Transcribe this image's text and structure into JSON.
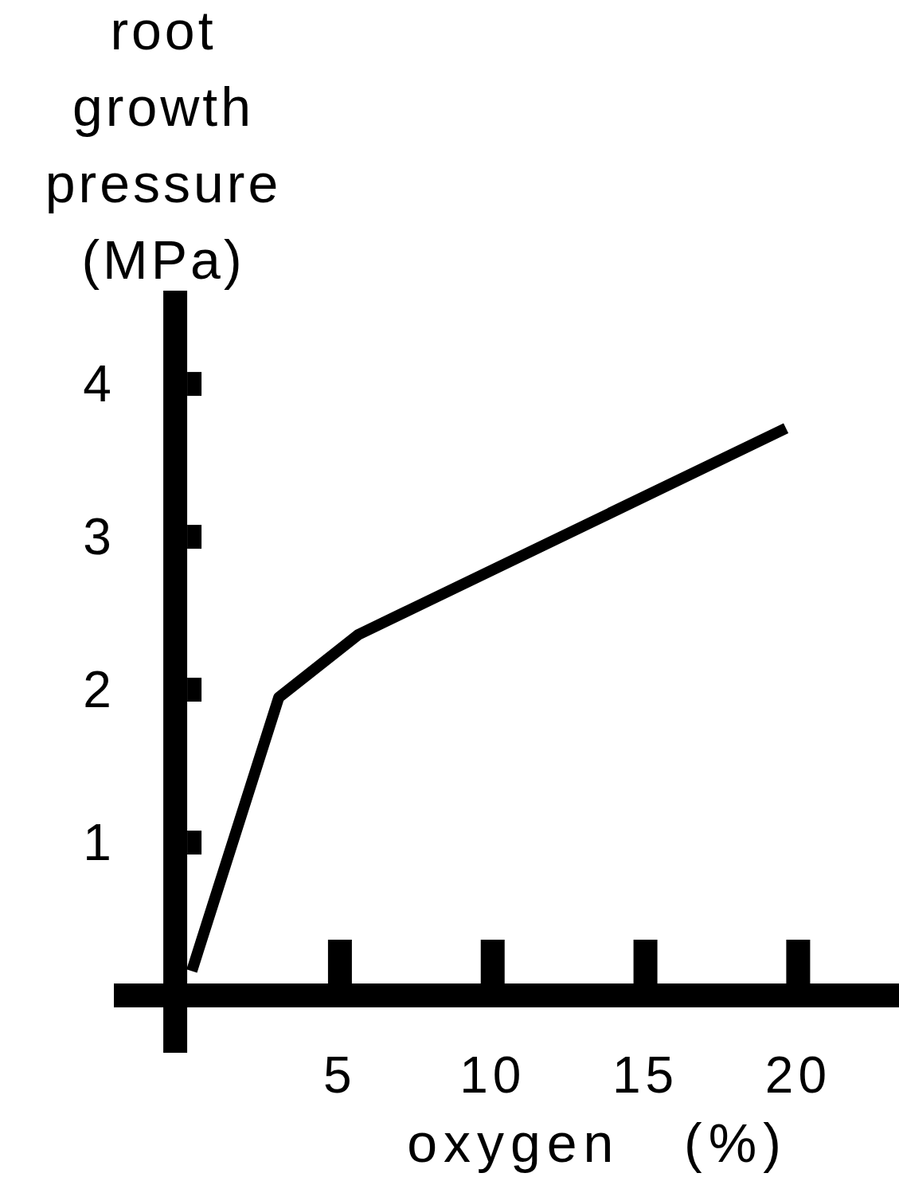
{
  "chart_data": {
    "type": "line",
    "xlabel": "oxygen   (%)",
    "ylabel": "root growth pressure (MPa)",
    "series": [
      {
        "color": "#000000",
        "x": [
          0.15,
          3.0,
          5.6,
          19.6
        ],
        "values": [
          0.16,
          1.95,
          2.36,
          3.71
        ]
      }
    ],
    "xlim": [
      -2.4,
      23.3
    ],
    "xticks": [
      5,
      10,
      15,
      20
    ],
    "ylim": [
      -0.375,
      4.61
    ],
    "yticks": [
      1,
      2,
      3,
      4
    ],
    "grid": false,
    "marker": "none",
    "line_style": "solid"
  }
}
